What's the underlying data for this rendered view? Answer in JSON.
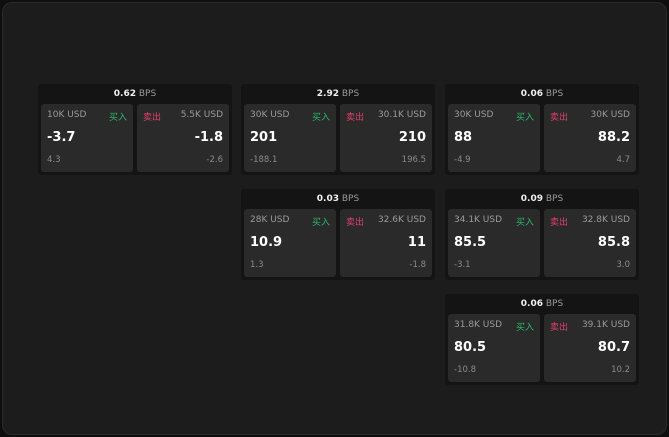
{
  "labels": {
    "buy": "买入",
    "sell": "卖出",
    "unit": "BPS"
  },
  "colors": {
    "buy": "#2fb86a",
    "sell": "#e0406a"
  },
  "panels": [
    {
      "spread": "0.62",
      "bid": {
        "size": "10K USD",
        "price": "-3.7",
        "change": "4.3"
      },
      "ask": {
        "size": "5.5K USD",
        "price": "-1.8",
        "change": "-2.6"
      }
    },
    {
      "spread": "2.92",
      "bid": {
        "size": "30K USD",
        "price": "201",
        "change": "-188.1"
      },
      "ask": {
        "size": "30.1K USD",
        "price": "210",
        "change": "196.5"
      }
    },
    {
      "spread": "0.06",
      "bid": {
        "size": "30K USD",
        "price": "88",
        "change": "-4.9"
      },
      "ask": {
        "size": "30K USD",
        "price": "88.2",
        "change": "4.7"
      }
    },
    {
      "spread": "0.03",
      "bid": {
        "size": "28K USD",
        "price": "10.9",
        "change": "1.3"
      },
      "ask": {
        "size": "32.6K USD",
        "price": "11",
        "change": "-1.8"
      }
    },
    {
      "spread": "0.09",
      "bid": {
        "size": "34.1K USD",
        "price": "85.5",
        "change": "-3.1"
      },
      "ask": {
        "size": "32.8K USD",
        "price": "85.8",
        "change": "3.0"
      }
    },
    {
      "spread": "0.06",
      "bid": {
        "size": "31.8K USD",
        "price": "80.5",
        "change": "-10.8"
      },
      "ask": {
        "size": "39.1K USD",
        "price": "80.7",
        "change": "10.2"
      }
    }
  ]
}
